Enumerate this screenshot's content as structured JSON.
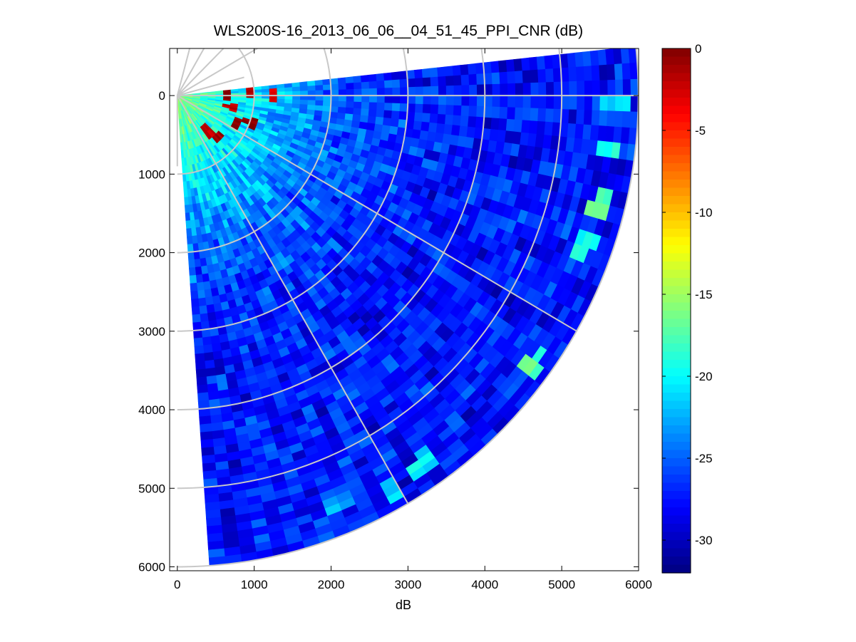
{
  "chart_data": {
    "type": "heatmap",
    "subtype": "polar-ppi-sector",
    "title": "WLS200S-16_2013_06_06__04_51_45_PPI_CNR (dB)",
    "xlabel": "dB",
    "ylabel": "",
    "xlim": [
      -100,
      6000
    ],
    "ylim": [
      -600,
      6050
    ],
    "y_reversed": true,
    "xticks": [
      0,
      1000,
      2000,
      3000,
      4000,
      5000,
      6000
    ],
    "xtick_labels": [
      "0",
      "1000",
      "2000",
      "3000",
      "4000",
      "5000",
      "6000"
    ],
    "yticks": [
      0,
      1000,
      2000,
      3000,
      4000,
      5000,
      6000
    ],
    "ytick_labels": [
      "0",
      "1000",
      "2000",
      "3000",
      "4000",
      "5000",
      "6000"
    ],
    "sector": {
      "origin": [
        0,
        0
      ],
      "max_range_m": 6000,
      "azimuth_start_deg": -6,
      "azimuth_end_deg": 86,
      "range_gate_m": 100,
      "beam_step_deg": 2
    },
    "grid_rings_m": [
      1000,
      2000,
      3000,
      4000,
      5000,
      6000
    ],
    "grid_spokes_deg": [
      -30,
      -60,
      0,
      30,
      60
    ],
    "colorbar": {
      "colormap": "jet",
      "clim": [
        -32,
        0
      ],
      "ticks": [
        0,
        -5,
        -10,
        -15,
        -20,
        -25,
        -30
      ],
      "tick_labels": [
        "0",
        "-5",
        "-10",
        "-15",
        "-20",
        "-25",
        "-30"
      ]
    },
    "cnr_profile": {
      "near_field_peak_db": -15,
      "near_field_decay_range_m": 2000,
      "far_field_mean_db": -27.5,
      "hot_spots": [
        {
          "x_m": 650,
          "y_m": 0,
          "cnr_db": -1
        },
        {
          "x_m": 950,
          "y_m": -50,
          "cnr_db": -2
        },
        {
          "x_m": 700,
          "y_m": 150,
          "cnr_db": -3
        },
        {
          "x_m": 750,
          "y_m": 350,
          "cnr_db": -1
        },
        {
          "x_m": 950,
          "y_m": 350,
          "cnr_db": -1
        },
        {
          "x_m": 400,
          "y_m": 450,
          "cnr_db": -3
        },
        {
          "x_m": 550,
          "y_m": 550,
          "cnr_db": -2
        },
        {
          "x_m": 1250,
          "y_m": 0,
          "cnr_db": -4
        }
      ],
      "bright_patches": [
        {
          "x_m": 5600,
          "y_m": 700,
          "cnr_db": -17
        },
        {
          "x_m": 5500,
          "y_m": 1400,
          "cnr_db": -16
        },
        {
          "x_m": 5300,
          "y_m": 1900,
          "cnr_db": -18
        },
        {
          "x_m": 4600,
          "y_m": 3400,
          "cnr_db": -16
        },
        {
          "x_m": 3200,
          "y_m": 4700,
          "cnr_db": -19
        },
        {
          "x_m": 2800,
          "y_m": 5000,
          "cnr_db": -20
        },
        {
          "x_m": 2100,
          "y_m": 5200,
          "cnr_db": -21
        },
        {
          "x_m": 5700,
          "y_m": 100,
          "cnr_db": -19
        }
      ]
    }
  }
}
